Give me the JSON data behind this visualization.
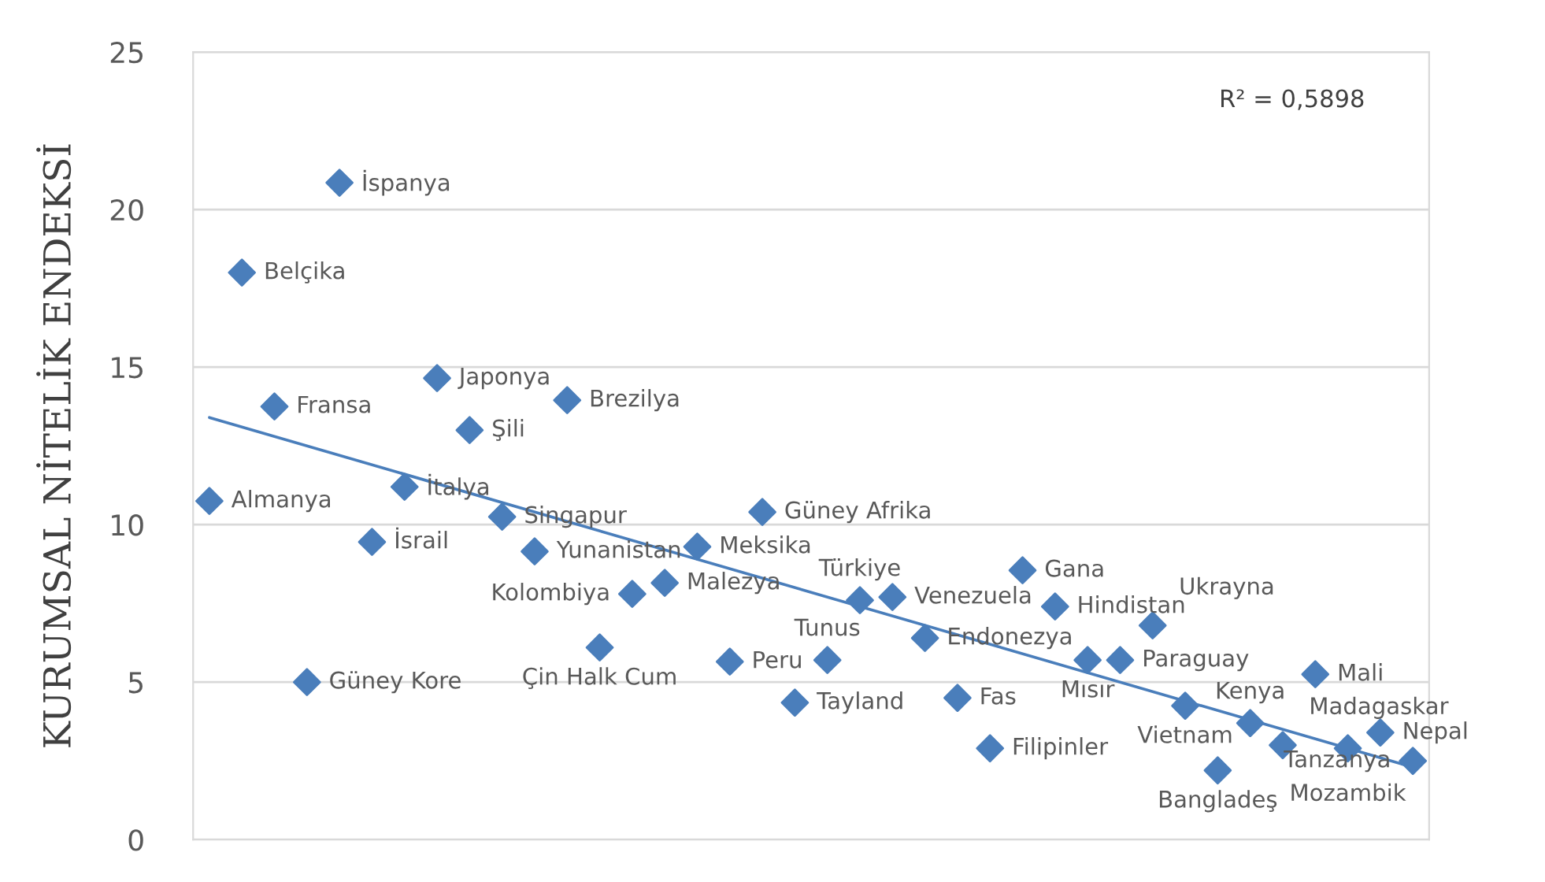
{
  "chart_data": {
    "type": "scatter",
    "ylabel": "KURUMSAL NİTELİK ENDEKSİ",
    "annotations": [
      "R² = 0,5898"
    ],
    "categories": [
      null,
      null,
      null,
      null,
      null,
      null,
      null,
      null,
      null,
      null,
      null,
      null,
      null,
      null,
      null,
      null,
      null,
      null,
      null,
      null,
      null,
      null,
      null,
      null,
      null,
      null,
      null,
      null,
      null,
      null,
      null,
      null,
      null,
      null,
      null,
      null,
      null,
      null
    ],
    "ylim": [
      0,
      25
    ],
    "yticks": [
      0,
      5,
      10,
      15,
      20,
      25
    ],
    "grid": "y",
    "marker": "diamond",
    "series": [
      {
        "color": "#4a7ebb",
        "values": [
          10.75,
          18.0,
          13.75,
          5.0,
          20.85,
          9.45,
          11.2,
          14.65,
          13.0,
          10.25,
          9.15,
          13.95,
          6.1,
          7.8,
          8.15,
          9.3,
          5.65,
          10.4,
          4.35,
          5.7,
          7.6,
          7.7,
          6.4,
          4.5,
          2.9,
          8.55,
          7.4,
          5.7,
          5.7,
          6.8,
          4.25,
          2.2,
          3.7,
          3.0,
          5.25,
          2.9,
          3.4,
          2.5
        ],
        "value_labels": [
          "Almanya",
          "Belçika",
          "Fransa",
          "Güney Kore",
          "İspanya",
          "İsrail",
          "İtalya",
          "Japonya",
          "Şili",
          "Singapur",
          "Yunanistan",
          "Brezilya",
          "Çin Halk Cum",
          "Kolombiya",
          "Malezya",
          "Meksika",
          "Peru",
          "Güney Afrika",
          "Tayland",
          "Tunus",
          "Türkiye",
          "Venezuela",
          "Endonezya",
          "Fas",
          "Filipinler",
          "Gana",
          "Hindistan",
          "Mısır",
          "Paraguay",
          "Ukrayna",
          "Vietnam",
          "Bangladeş",
          "Kenya",
          "Madagaskar",
          "Mali",
          "Mozambik",
          "Nepal",
          "Tanzanya"
        ]
      },
      {
        "type": "line",
        "marker": "none",
        "color": "#4a7ebb",
        "values": [
          13.4,
          null,
          null,
          null,
          null,
          null,
          null,
          null,
          null,
          null,
          null,
          null,
          null,
          null,
          null,
          null,
          null,
          null,
          null,
          null,
          null,
          null,
          null,
          null,
          null,
          null,
          null,
          null,
          null,
          null,
          null,
          null,
          null,
          null,
          null,
          null,
          null,
          2.3
        ]
      }
    ]
  }
}
